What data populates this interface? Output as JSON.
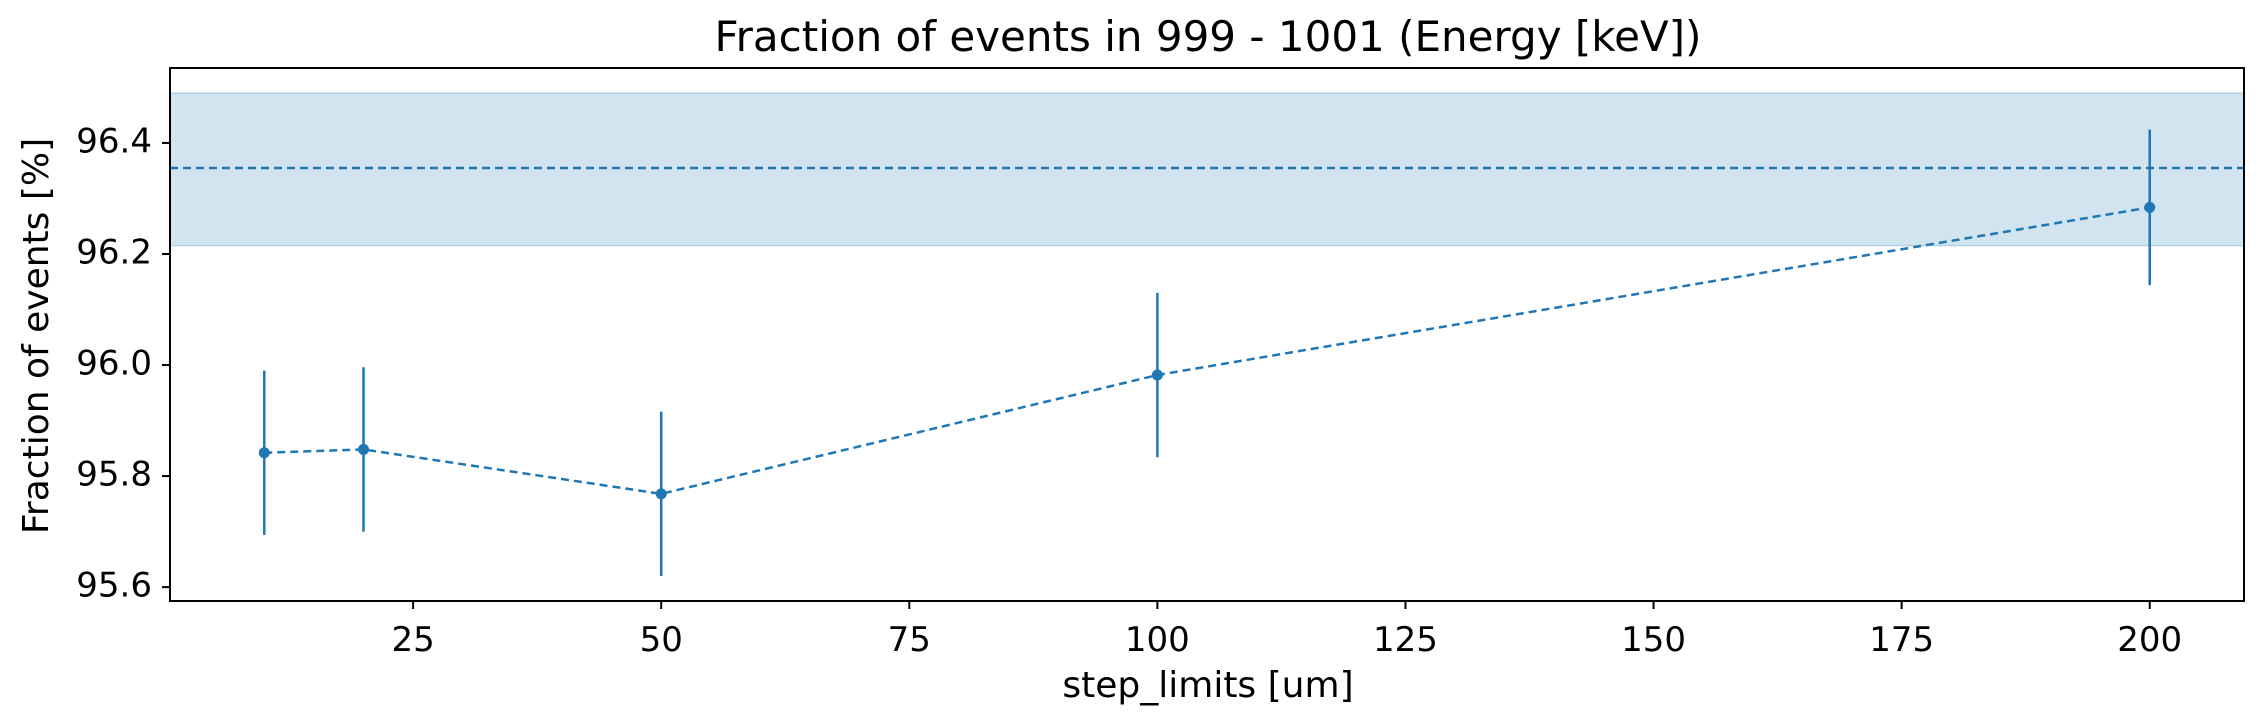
{
  "chart_data": {
    "type": "line",
    "title": "Fraction of events in 999 - 1001 (Energy [keV])",
    "xlabel": "step_limits [um]",
    "ylabel": "Fraction of events [%]",
    "x": [
      10,
      20,
      50,
      100,
      200
    ],
    "series": [
      {
        "values": [
          95.842,
          95.848,
          95.768,
          95.982,
          96.284
        ],
        "errors": [
          0.148,
          0.148,
          0.148,
          0.148,
          0.14
        ],
        "color": "#1f77b4",
        "line_style": "dashed",
        "marker": "circle"
      }
    ],
    "reference": {
      "value": 96.355,
      "band": [
        96.215,
        96.49
      ],
      "color": "#1f77b4",
      "line_style": "dashed"
    },
    "xlim": [
      0.5,
      209.5
    ],
    "ylim": [
      95.575,
      96.535
    ],
    "xticks": [
      25,
      50,
      75,
      100,
      125,
      150,
      175,
      200
    ],
    "xtick_labels": [
      "25",
      "50",
      "75",
      "100",
      "125",
      "150",
      "175",
      "200"
    ],
    "yticks": [
      95.6,
      95.8,
      96.0,
      96.2,
      96.4
    ],
    "ytick_labels": [
      "95.6",
      "95.8",
      "96.0",
      "96.2",
      "96.4"
    ],
    "grid": false,
    "legend": "none"
  }
}
